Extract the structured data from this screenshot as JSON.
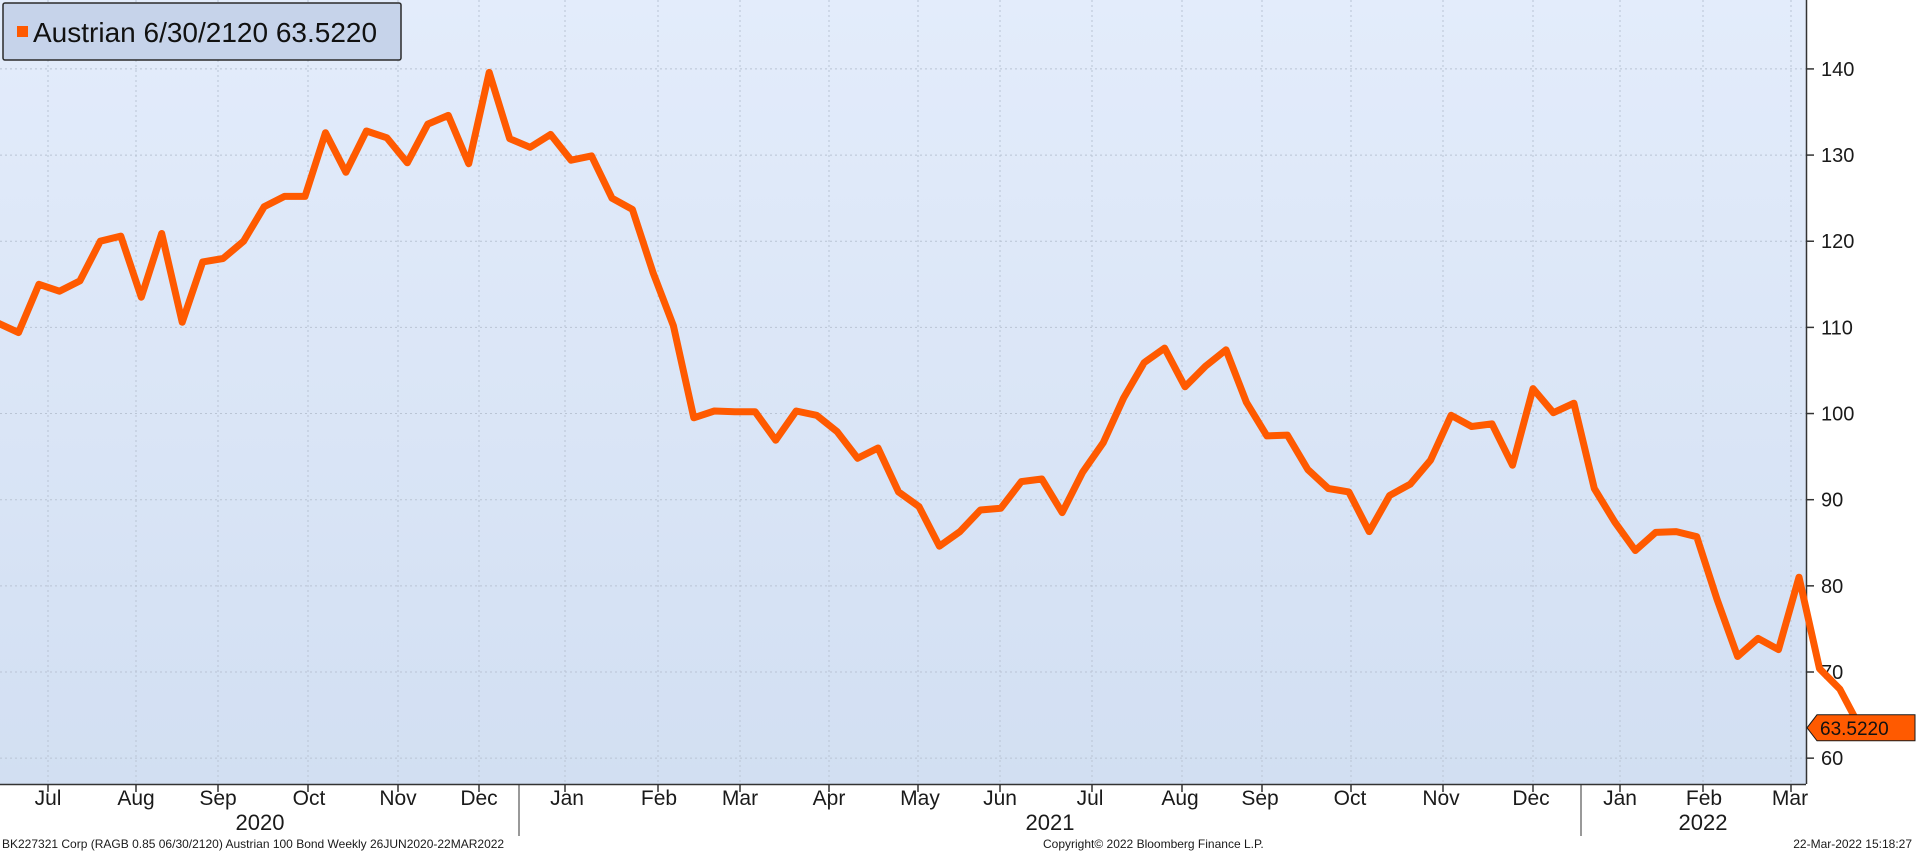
{
  "legend": {
    "label": "Austrian 6/30/2120 63.5220",
    "marker_color": "#ff5a00"
  },
  "footer": {
    "left": "BK227321 Corp (RAGB 0.85 06/30/2120) Austrian 100 Bond  Weekly 26JUN2020-22MAR2022",
    "center": "Copyright© 2022 Bloomberg Finance L.P.",
    "right": "22-Mar-2022 15:18:27"
  },
  "last_value_label": "63.5220",
  "colors": {
    "line": "#ff5a00",
    "background_top": "#e3ecfb",
    "background_bottom": "#d2dff2",
    "grid": "#b9c4d4",
    "axis": "#333333"
  },
  "chart_data": {
    "type": "line",
    "title": "",
    "xlabel": "",
    "ylabel": "",
    "ylim": [
      57,
      148
    ],
    "y_ticks": [
      60,
      70,
      80,
      90,
      100,
      110,
      120,
      130,
      140
    ],
    "y_axis_position": "right",
    "grid": true,
    "legend_position": "top-left",
    "x_month_ticks": [
      "Jul",
      "Aug",
      "Sep",
      "Oct",
      "Nov",
      "Dec",
      "Jan",
      "Feb",
      "Mar",
      "Apr",
      "May",
      "Jun",
      "Jul",
      "Aug",
      "Sep",
      "Oct",
      "Nov",
      "Dec",
      "Jan",
      "Feb",
      "Mar"
    ],
    "x_year_labels": [
      "2020",
      "2021",
      "2022"
    ],
    "series": [
      {
        "name": "Austrian 6/30/2120",
        "frequency": "Weekly",
        "values": [
          110.5,
          109.4,
          115.0,
          114.2,
          115.4,
          120.0,
          120.6,
          113.5,
          120.9,
          110.6,
          117.6,
          118.0,
          120.0,
          124.0,
          125.2,
          125.2,
          132.6,
          128.0,
          132.8,
          132.0,
          129.1,
          133.6,
          134.6,
          129.0,
          139.6,
          131.9,
          130.9,
          132.4,
          129.4,
          129.9,
          125.0,
          123.7,
          116.4,
          110.2,
          99.5,
          100.3,
          100.2,
          100.2,
          96.9,
          100.3,
          99.8,
          97.9,
          94.8,
          96.0,
          90.9,
          89.2,
          84.6,
          86.3,
          88.8,
          89.0,
          92.1,
          92.4,
          88.5,
          93.2,
          96.6,
          101.8,
          105.9,
          107.6,
          103.1,
          105.5,
          107.4,
          101.3,
          97.4,
          97.5,
          93.5,
          91.3,
          90.9,
          86.3,
          90.5,
          91.8,
          94.6,
          99.8,
          98.5,
          98.8,
          94.0,
          102.9,
          100.1,
          101.2,
          91.3,
          87.4,
          84.1,
          86.2,
          86.3,
          85.7,
          78.4,
          71.8,
          73.9,
          72.6,
          81.0,
          70.4,
          68.0,
          63.5
        ]
      }
    ],
    "last_value": 63.522
  }
}
